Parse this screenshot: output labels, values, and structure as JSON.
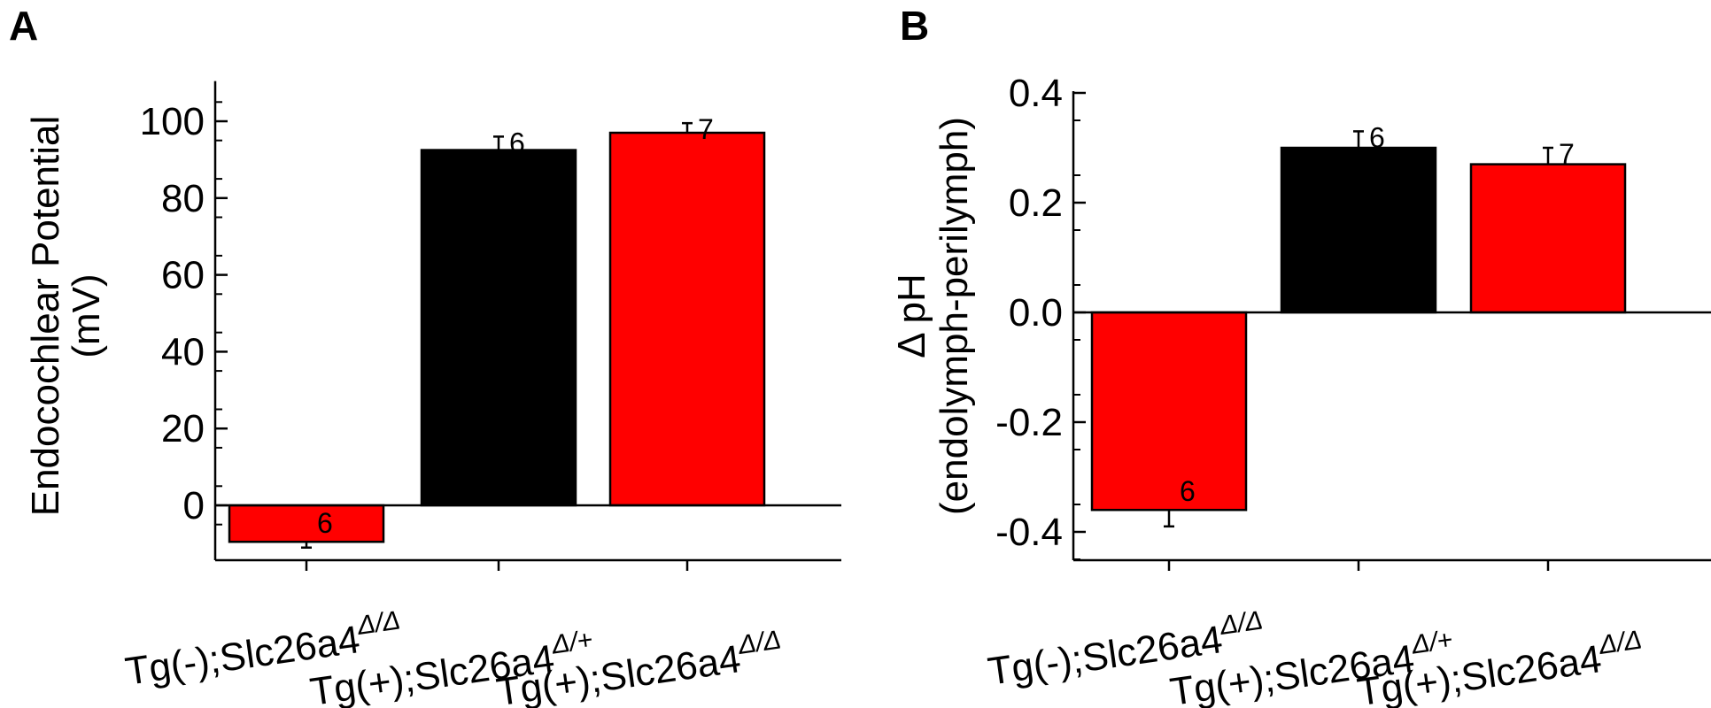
{
  "chart_data": [
    {
      "type": "bar",
      "panel_label": "A",
      "ylabel_line1": "Endocochlear Potential",
      "ylabel_line2": "(mV)",
      "ylim": [
        -14,
        110
      ],
      "yticks": [
        0,
        20,
        40,
        60,
        80,
        100
      ],
      "ytick_labels": [
        "0",
        "20",
        "40",
        "60",
        "80",
        "100"
      ],
      "categories": [
        {
          "prefix": "Tg(-);",
          "gene": "Slc26a4",
          "sup": "Δ/Δ"
        },
        {
          "prefix": "Tg(+);",
          "gene": "Slc26a4",
          "sup": "Δ/+"
        },
        {
          "prefix": "Tg(+);",
          "gene": "Slc26a4",
          "sup": "Δ/Δ"
        }
      ],
      "values": [
        -9.5,
        92.5,
        97
      ],
      "errors": [
        1.5,
        3.5,
        2.5
      ],
      "n": [
        "6",
        "6",
        "7"
      ],
      "colors": [
        "#ff0000",
        "#000000",
        "#ff0000"
      ]
    },
    {
      "type": "bar",
      "panel_label": "B",
      "ylabel_line1": "Δ pH",
      "ylabel_line2": "(endolymph-perilymph)",
      "ylim": [
        -0.45,
        0.4
      ],
      "yticks": [
        -0.4,
        -0.2,
        0.0,
        0.2,
        0.4
      ],
      "ytick_labels": [
        "-0.4",
        "-0.2",
        "0.0",
        "0.2",
        "0.4"
      ],
      "categories": [
        {
          "prefix": "Tg(-);",
          "gene": "Slc26a4",
          "sup": "Δ/Δ"
        },
        {
          "prefix": "Tg(+);",
          "gene": "Slc26a4",
          "sup": "Δ/+"
        },
        {
          "prefix": "Tg(+);",
          "gene": "Slc26a4",
          "sup": "Δ/Δ"
        }
      ],
      "values": [
        -0.36,
        0.3,
        0.27
      ],
      "errors": [
        0.03,
        0.03,
        0.03
      ],
      "n": [
        "6",
        "6",
        "7"
      ],
      "colors": [
        "#ff0000",
        "#000000",
        "#ff0000"
      ]
    }
  ]
}
